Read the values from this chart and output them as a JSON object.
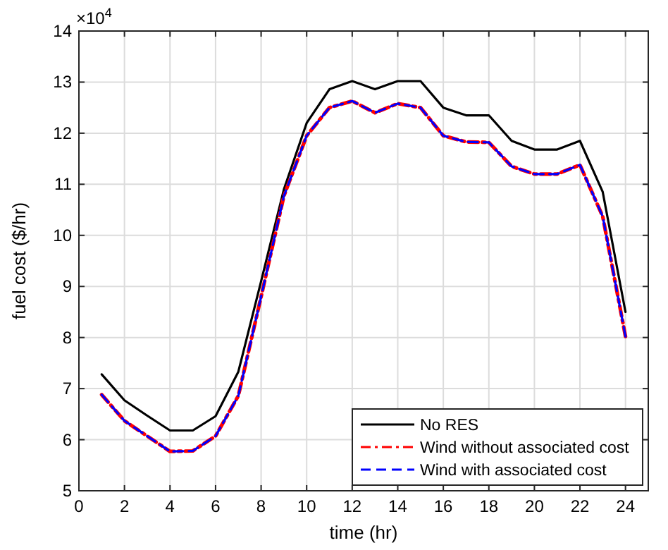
{
  "chart_data": {
    "type": "line",
    "xlabel": "time (hr)",
    "ylabel": "fuel cost ($/hr)",
    "annotations": [
      "×10$^{4}$"
    ],
    "x": [
      1,
      2,
      3,
      4,
      5,
      6,
      7,
      8,
      9,
      10,
      11,
      12,
      13,
      14,
      15,
      16,
      17,
      18,
      19,
      20,
      21,
      22,
      23,
      24
    ],
    "xlim": [
      0,
      25
    ],
    "xticks": [
      0,
      2,
      4,
      6,
      8,
      10,
      12,
      14,
      16,
      18,
      20,
      22,
      24
    ],
    "ylim": [
      5,
      14
    ],
    "yticks": [
      5,
      6,
      7,
      8,
      9,
      10,
      11,
      12,
      13,
      14
    ],
    "grid": true,
    "legend": "bottom right",
    "series": [
      {
        "name": "No RES",
        "color": "#000000",
        "line_style": "solid",
        "values": [
          7.28,
          6.77,
          6.47,
          6.18,
          6.18,
          6.46,
          7.33,
          9.1,
          10.9,
          12.2,
          12.86,
          13.02,
          12.86,
          13.02,
          13.02,
          12.5,
          12.35,
          12.35,
          11.85,
          11.68,
          11.68,
          11.85,
          10.85,
          8.5
        ]
      },
      {
        "name": "Wind without associated cost",
        "color": "#ff0000",
        "line_style": "dashdot",
        "values": [
          6.88,
          6.37,
          6.07,
          5.77,
          5.78,
          6.07,
          6.86,
          8.8,
          10.77,
          11.95,
          12.5,
          12.63,
          12.4,
          12.58,
          12.5,
          11.95,
          11.83,
          11.82,
          11.35,
          11.2,
          11.2,
          11.38,
          10.37,
          8.02
        ]
      },
      {
        "name": "Wind with associated cost",
        "color": "#0000ff",
        "line_style": "dashed",
        "values": [
          6.88,
          6.37,
          6.07,
          5.77,
          5.78,
          6.07,
          6.86,
          8.8,
          10.77,
          11.95,
          12.5,
          12.63,
          12.4,
          12.58,
          12.5,
          11.95,
          11.83,
          11.82,
          11.35,
          11.2,
          11.2,
          11.38,
          10.37,
          8.02
        ]
      }
    ]
  }
}
